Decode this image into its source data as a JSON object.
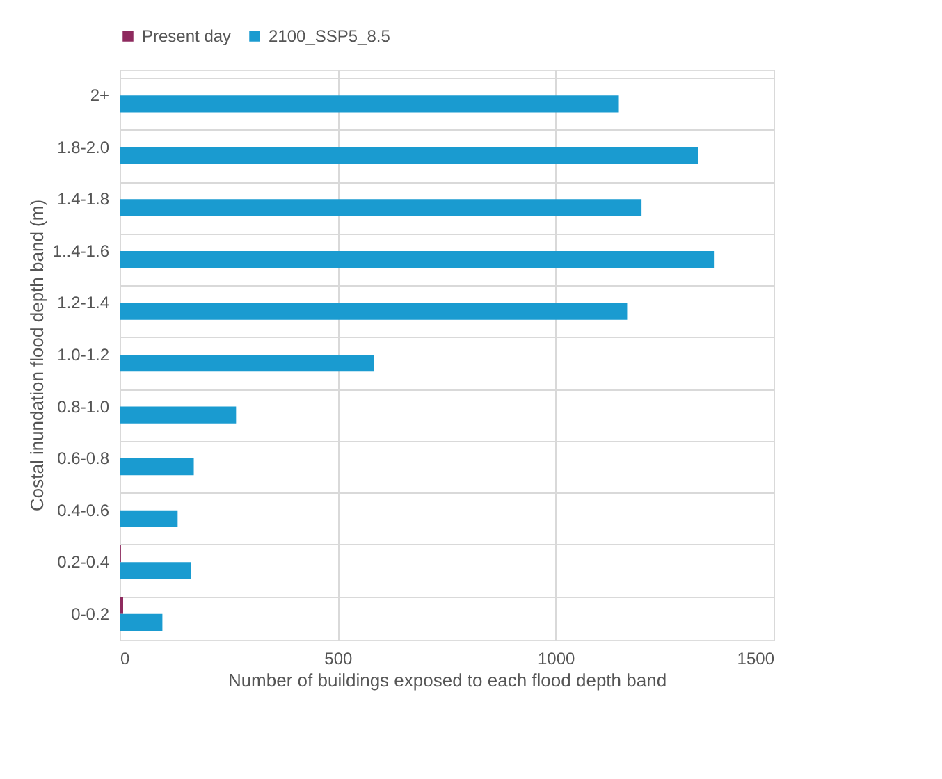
{
  "chart_data": {
    "type": "bar",
    "orientation": "horizontal",
    "xlabel": "Number of buildings exposed to each flood depth band",
    "ylabel": "Costal inundation flood depth band (m)",
    "categories": [
      "2+",
      "1.8-2.0",
      "1.4-1.8",
      "1..4-1.6",
      "1.2-1.4",
      "1.0-1.2",
      "0.8-1.0",
      "0.6-0.8",
      "0.4-0.6",
      "0.2-0.4",
      "0-0.2"
    ],
    "series": [
      {
        "name": "Present day",
        "color": "#8e2a5e",
        "values": [
          0,
          0,
          0,
          0,
          0,
          0,
          0,
          0,
          0,
          3,
          8
        ]
      },
      {
        "name": "2100_SSP5_8.5",
        "color": "#1a9bd0",
        "values": [
          1145,
          1327,
          1197,
          1363,
          1164,
          584,
          267,
          170,
          133,
          163,
          98
        ]
      }
    ],
    "xlim": [
      0,
      1500
    ],
    "xticks": [
      0,
      500,
      1000,
      1500
    ],
    "grid": true,
    "legend": "top"
  }
}
